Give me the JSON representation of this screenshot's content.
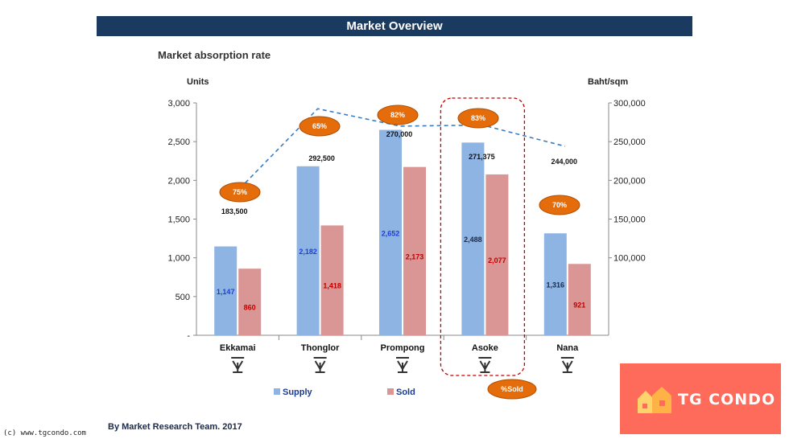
{
  "header": {
    "title": "Market Overview"
  },
  "footer": {
    "credit": "By Market Research Team. 2017",
    "watermark": "(c) www.tgcondo.com"
  },
  "logo": {
    "text": "TG CONDO",
    "bg_color": "#ff6b5b"
  },
  "chart_data": {
    "type": "bar",
    "title": "Market absorption rate",
    "ylabel": "Units",
    "y2label": "Baht/sqm",
    "ylim": [
      0,
      3000
    ],
    "y2lim": [
      0,
      300000
    ],
    "yticks": [
      "-",
      "500",
      "1,000",
      "1,500",
      "2,000",
      "2,500",
      "3,000"
    ],
    "y2ticks": [
      "100,000",
      "150,000",
      "200,000",
      "250,000",
      "300,000"
    ],
    "categories": [
      "Ekkamai",
      "Thonglor",
      "Prompong",
      "Asoke",
      "Nana"
    ],
    "series": [
      {
        "name": "Supply",
        "type": "bar",
        "axis": "left",
        "values": [
          1147,
          2182,
          2652,
          2488,
          1316
        ],
        "labels": [
          "1,147",
          "2,182",
          "2,652",
          "2,488",
          "1,316"
        ],
        "color": "#8db4e2",
        "label_colors": [
          "#1f3fd1",
          "#1f3fd1",
          "#1f3fd1",
          "#1b2a4a",
          "#1b2a4a"
        ]
      },
      {
        "name": "Sold",
        "type": "bar",
        "axis": "left",
        "values": [
          860,
          1418,
          2173,
          2077,
          921
        ],
        "labels": [
          "860",
          "1,418",
          "2,173",
          "2,077",
          "921"
        ],
        "color": "#da9694",
        "label_color": "#c00000"
      },
      {
        "type": "line",
        "axis": "right",
        "values": [
          183500,
          292500,
          270000,
          271375,
          244000
        ],
        "labels": [
          "183,500",
          "292,500",
          "270,000",
          "271,375",
          "244,000"
        ],
        "color": "#3a7cc1",
        "style": "dashed"
      }
    ],
    "percent_sold": [
      "75%",
      "65%",
      "82%",
      "83%",
      "70%"
    ],
    "percent_label": "%Sold",
    "highlight": "Asoke",
    "legend": [
      "Supply",
      "Sold"
    ],
    "legend_position": "bottom",
    "grid": false
  }
}
